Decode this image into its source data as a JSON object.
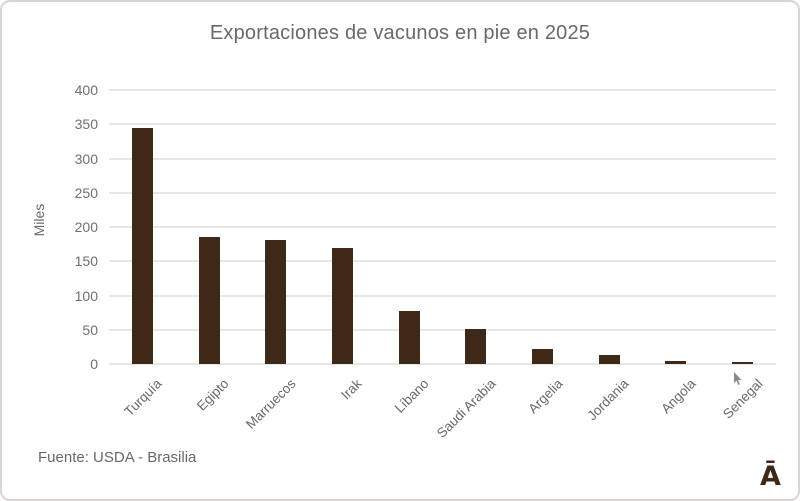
{
  "card": {
    "source": "Fuente: USDA - Brasilia",
    "logo": "Ā"
  },
  "chart_data": {
    "type": "bar",
    "title": "Exportaciones de vacunos en pie en 2025",
    "categories": [
      "Turquía",
      "Egipto",
      "Marruecos",
      "Irak",
      "Líbano",
      "Saudi Arabia",
      "Argelia",
      "Jordania",
      "Angola",
      "Senegal"
    ],
    "values": [
      345,
      185,
      181,
      169,
      77,
      51,
      22,
      13,
      4,
      3
    ],
    "xlabel": "",
    "ylabel": "Miles",
    "ylim": [
      0,
      400
    ],
    "yticks": [
      0,
      50,
      100,
      150,
      200,
      250,
      300,
      350,
      400
    ],
    "grid": true,
    "legend": "none",
    "bar_color": "#3e2817"
  },
  "colors": {
    "bar": "#3e2817",
    "text": "#6e6767",
    "gridline": "#e9e6e6",
    "border": "#d9d5d5",
    "logo": "#3e2817"
  }
}
